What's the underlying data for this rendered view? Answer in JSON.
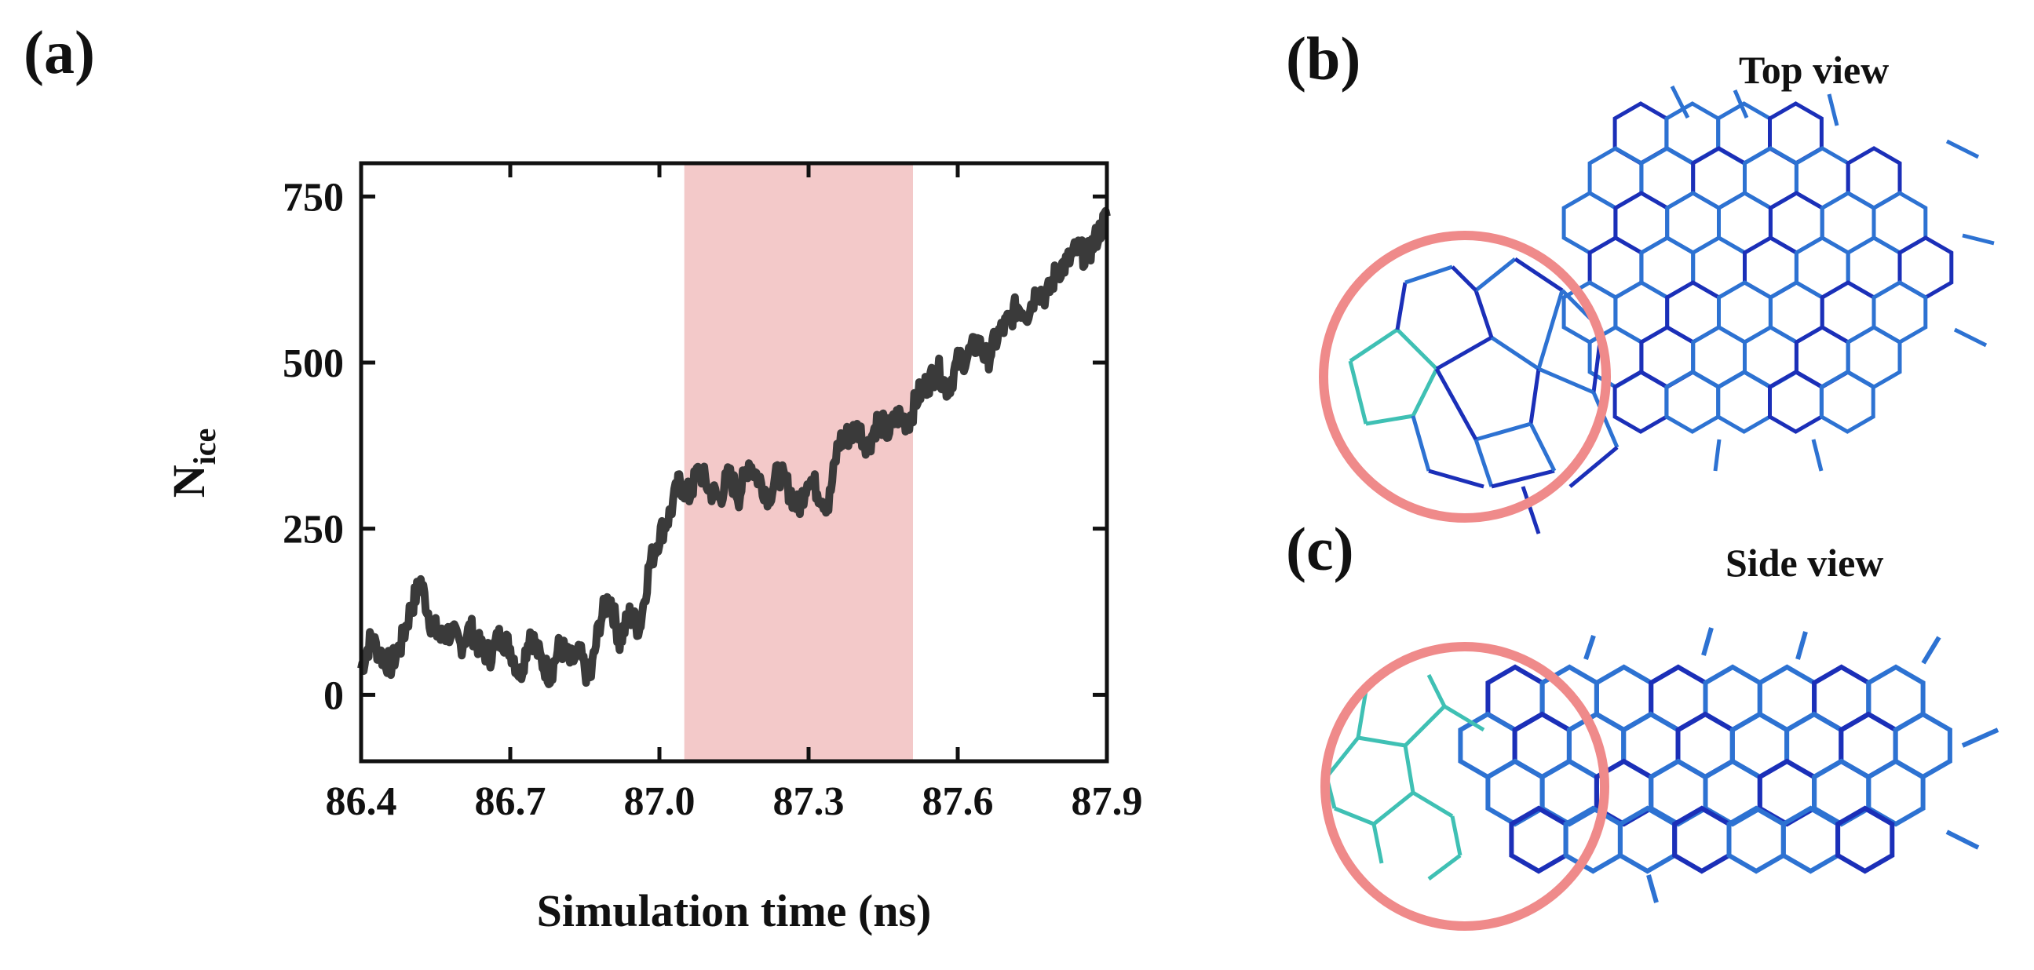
{
  "panels": {
    "a": "(a)",
    "b": "(b)",
    "c": "(c)"
  },
  "views": {
    "top": "Top view",
    "side": "Side view"
  },
  "colors": {
    "trace": "#3a3a3a",
    "highlight": "#f3c9c9",
    "circle": "#ef8a8a",
    "ice_blue": "#2d72d2",
    "ice_dark": "#1b2fb8",
    "ice_cyan": "#3fc0b4"
  },
  "chart_data": {
    "type": "line",
    "title": "",
    "xlabel": "Simulation time (ns)",
    "ylabel_main": "N",
    "ylabel_sub": "ice",
    "xlim": [
      86.4,
      87.9
    ],
    "ylim": [
      -100,
      800
    ],
    "xticks": [
      86.4,
      86.7,
      87.0,
      87.3,
      87.6,
      87.9
    ],
    "xtick_labels": [
      "86.4",
      "86.7",
      "87.0",
      "87.3",
      "87.6",
      "87.9"
    ],
    "yticks": [
      0,
      250,
      500,
      750
    ],
    "ytick_labels": [
      "0",
      "250",
      "500",
      "750"
    ],
    "highlight_range": [
      87.05,
      87.51
    ],
    "series": [
      {
        "name": "N_ice",
        "x": [
          86.4,
          86.42,
          86.44,
          86.46,
          86.48,
          86.5,
          86.52,
          86.54,
          86.56,
          86.58,
          86.6,
          86.62,
          86.64,
          86.66,
          86.68,
          86.7,
          86.72,
          86.74,
          86.76,
          86.78,
          86.8,
          86.82,
          86.84,
          86.86,
          86.88,
          86.9,
          86.92,
          86.94,
          86.96,
          86.98,
          87.0,
          87.02,
          87.04,
          87.06,
          87.08,
          87.1,
          87.12,
          87.14,
          87.16,
          87.18,
          87.2,
          87.22,
          87.24,
          87.26,
          87.28,
          87.3,
          87.32,
          87.34,
          87.36,
          87.38,
          87.4,
          87.42,
          87.44,
          87.46,
          87.48,
          87.5,
          87.52,
          87.54,
          87.56,
          87.58,
          87.6,
          87.62,
          87.64,
          87.66,
          87.68,
          87.7,
          87.72,
          87.74,
          87.76,
          87.78,
          87.8,
          87.82,
          87.84,
          87.86,
          87.88,
          87.9
        ],
        "values": [
          40,
          85,
          60,
          45,
          75,
          130,
          170,
          110,
          85,
          95,
          75,
          100,
          70,
          60,
          90,
          70,
          30,
          95,
          55,
          30,
          75,
          50,
          60,
          20,
          110,
          150,
          80,
          120,
          100,
          195,
          240,
          270,
          320,
          300,
          340,
          310,
          295,
          330,
          300,
          350,
          325,
          300,
          335,
          310,
          280,
          330,
          305,
          285,
          380,
          390,
          400,
          375,
          415,
          395,
          420,
          410,
          450,
          470,
          490,
          460,
          500,
          510,
          530,
          505,
          540,
          560,
          585,
          575,
          610,
          600,
          640,
          650,
          670,
          660,
          690,
          720
        ]
      }
    ]
  }
}
